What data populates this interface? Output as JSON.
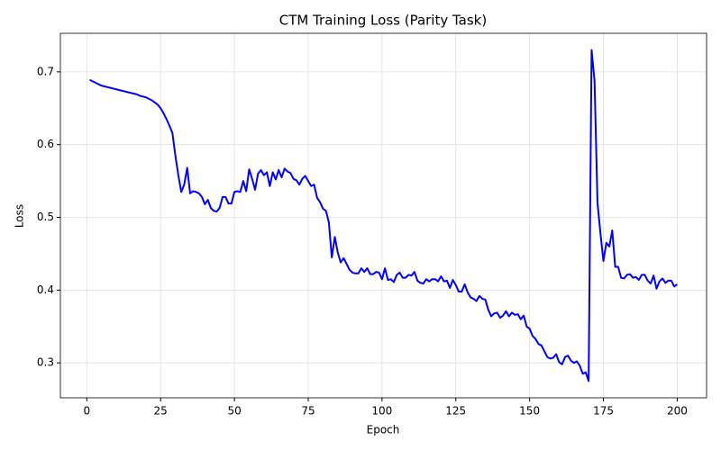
{
  "chart_data": {
    "type": "line",
    "title": "CTM Training Loss (Parity Task)",
    "x_label": "Epoch",
    "y_label": "Loss",
    "x": [
      1,
      2,
      3,
      4,
      5,
      6,
      7,
      8,
      9,
      10,
      11,
      12,
      13,
      14,
      15,
      16,
      17,
      18,
      19,
      20,
      21,
      22,
      23,
      24,
      25,
      26,
      27,
      28,
      29,
      30,
      31,
      32,
      33,
      34,
      35,
      36,
      37,
      38,
      39,
      40,
      41,
      42,
      43,
      44,
      45,
      46,
      47,
      48,
      49,
      50,
      51,
      52,
      53,
      54,
      55,
      56,
      57,
      58,
      59,
      60,
      61,
      62,
      63,
      64,
      65,
      66,
      67,
      68,
      69,
      70,
      71,
      72,
      73,
      74,
      75,
      76,
      77,
      78,
      79,
      80,
      81,
      82,
      83,
      84,
      85,
      86,
      87,
      88,
      89,
      90,
      91,
      92,
      93,
      94,
      95,
      96,
      97,
      98,
      99,
      100,
      101,
      102,
      103,
      104,
      105,
      106,
      107,
      108,
      109,
      110,
      111,
      112,
      113,
      114,
      115,
      116,
      117,
      118,
      119,
      120,
      121,
      122,
      123,
      124,
      125,
      126,
      127,
      128,
      129,
      130,
      131,
      132,
      133,
      134,
      135,
      136,
      137,
      138,
      139,
      140,
      141,
      142,
      143,
      144,
      145,
      146,
      147,
      148,
      149,
      150,
      151,
      152,
      153,
      154,
      155,
      156,
      157,
      158,
      159,
      160,
      161,
      162,
      163,
      164,
      165,
      166,
      167,
      168,
      169,
      170,
      171,
      172,
      173,
      174,
      175,
      176,
      177,
      178,
      179,
      180,
      181,
      182,
      183,
      184,
      185,
      186,
      187,
      188,
      189,
      190,
      191,
      192,
      193,
      194,
      195,
      196,
      197,
      198,
      199,
      200
    ],
    "series": [
      {
        "color": "#0000ff",
        "values": [
          0.689,
          0.687,
          0.685,
          0.683,
          0.681,
          0.68,
          0.679,
          0.678,
          0.677,
          0.676,
          0.675,
          0.674,
          0.673,
          0.672,
          0.671,
          0.67,
          0.669,
          0.667,
          0.666,
          0.665,
          0.663,
          0.661,
          0.658,
          0.655,
          0.65,
          0.643,
          0.635,
          0.626,
          0.616,
          0.585,
          0.558,
          0.535,
          0.545,
          0.568,
          0.533,
          0.536,
          0.535,
          0.533,
          0.528,
          0.518,
          0.524,
          0.513,
          0.509,
          0.508,
          0.513,
          0.528,
          0.528,
          0.519,
          0.519,
          0.535,
          0.536,
          0.535,
          0.55,
          0.536,
          0.566,
          0.553,
          0.538,
          0.56,
          0.565,
          0.558,
          0.562,
          0.543,
          0.562,
          0.552,
          0.565,
          0.555,
          0.567,
          0.563,
          0.561,
          0.553,
          0.551,
          0.545,
          0.553,
          0.557,
          0.55,
          0.543,
          0.545,
          0.527,
          0.521,
          0.512,
          0.509,
          0.493,
          0.445,
          0.473,
          0.452,
          0.438,
          0.444,
          0.436,
          0.428,
          0.424,
          0.423,
          0.423,
          0.43,
          0.425,
          0.43,
          0.422,
          0.422,
          0.425,
          0.424,
          0.415,
          0.43,
          0.414,
          0.415,
          0.411,
          0.421,
          0.424,
          0.417,
          0.417,
          0.421,
          0.42,
          0.425,
          0.413,
          0.41,
          0.409,
          0.415,
          0.412,
          0.415,
          0.415,
          0.412,
          0.419,
          0.412,
          0.413,
          0.403,
          0.414,
          0.407,
          0.398,
          0.398,
          0.408,
          0.397,
          0.39,
          0.388,
          0.385,
          0.392,
          0.388,
          0.387,
          0.373,
          0.364,
          0.368,
          0.369,
          0.362,
          0.365,
          0.371,
          0.364,
          0.369,
          0.366,
          0.367,
          0.36,
          0.365,
          0.35,
          0.347,
          0.337,
          0.333,
          0.326,
          0.324,
          0.316,
          0.308,
          0.306,
          0.307,
          0.312,
          0.301,
          0.298,
          0.308,
          0.31,
          0.303,
          0.3,
          0.302,
          0.296,
          0.285,
          0.287,
          0.275,
          0.73,
          0.688,
          0.52,
          0.478,
          0.44,
          0.465,
          0.46,
          0.482,
          0.432,
          0.432,
          0.417,
          0.416,
          0.421,
          0.422,
          0.417,
          0.418,
          0.414,
          0.421,
          0.421,
          0.413,
          0.409,
          0.42,
          0.402,
          0.412,
          0.416,
          0.41,
          0.413,
          0.413,
          0.405,
          0.408
        ]
      }
    ],
    "xlim": [
      -8.95,
      209.95
    ],
    "xticks": [
      0,
      25,
      50,
      75,
      100,
      125,
      150,
      175,
      200
    ],
    "ylim": [
      0.252,
      0.753
    ],
    "yticks": [
      0.3,
      0.4,
      0.5,
      0.6,
      0.7
    ],
    "grid": true
  }
}
